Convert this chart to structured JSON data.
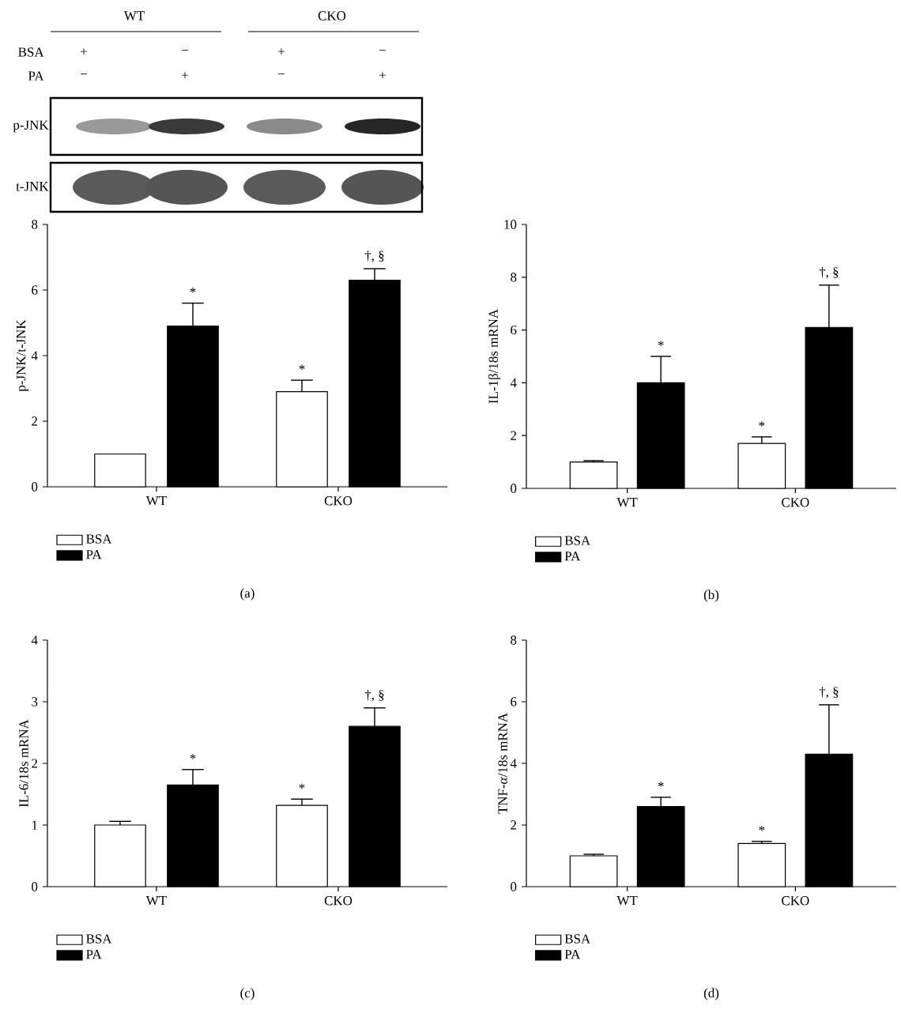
{
  "chart_data": [
    {
      "type": "bar",
      "title": "(a)",
      "ylabel": "p-JNK/t-JNK",
      "categories": [
        "WT",
        "CKO"
      ],
      "ylim": [
        0,
        8
      ],
      "yticks": [
        0,
        2,
        4,
        6,
        8
      ],
      "legend": "bottom",
      "series": [
        {
          "name": "BSA",
          "color": "#ffffff",
          "values": [
            1.0,
            2.9
          ],
          "errors": [
            null,
            [
              2.9,
              3.25
            ]
          ]
        },
        {
          "name": "PA",
          "color": "#000000",
          "values": [
            4.9,
            6.3
          ],
          "errors": [
            [
              4.9,
              5.6
            ],
            [
              6.3,
              6.65
            ]
          ]
        }
      ],
      "annotations": [
        "WT",
        "CKO",
        "BSA",
        "PA",
        "+",
        "−",
        "+",
        "−",
        "−",
        "+",
        "−",
        "+",
        "p-JNK",
        "t-JNK",
        "*",
        "*",
        "†, §"
      ]
    },
    {
      "type": "bar",
      "title": "(b)",
      "ylabel": "IL-1β/18s mRNA",
      "categories": [
        "WT",
        "CKO"
      ],
      "ylim": [
        0,
        10
      ],
      "yticks": [
        0,
        2,
        4,
        6,
        8,
        10
      ],
      "legend": "bottom",
      "series": [
        {
          "name": "BSA",
          "color": "#ffffff",
          "values": [
            1.0,
            1.7
          ],
          "errors": [
            [
              1.0,
              1.05
            ],
            [
              1.7,
              1.95
            ]
          ]
        },
        {
          "name": "PA",
          "color": "#000000",
          "values": [
            4.0,
            6.1
          ],
          "errors": [
            [
              4.0,
              5.0
            ],
            [
              6.1,
              7.7
            ]
          ]
        }
      ],
      "annotations": [
        "*",
        "*",
        "†, §"
      ]
    },
    {
      "type": "bar",
      "title": "(c)",
      "ylabel": "IL-6/18s mRNA",
      "categories": [
        "WT",
        "CKO"
      ],
      "ylim": [
        0,
        4
      ],
      "yticks": [
        0,
        1,
        2,
        3,
        4
      ],
      "legend": "bottom",
      "series": [
        {
          "name": "BSA",
          "color": "#ffffff",
          "values": [
            1.0,
            1.32
          ],
          "errors": [
            [
              1.0,
              1.06
            ],
            [
              1.32,
              1.42
            ]
          ]
        },
        {
          "name": "PA",
          "color": "#000000",
          "values": [
            1.65,
            2.6
          ],
          "errors": [
            [
              1.65,
              1.9
            ],
            [
              2.6,
              2.9
            ]
          ]
        }
      ],
      "annotations": [
        "*",
        "*",
        "†, §"
      ]
    },
    {
      "type": "bar",
      "title": "(d)",
      "ylabel": "TNF-*α*/18s mRNA",
      "categories": [
        "WT",
        "CKO"
      ],
      "ylim": [
        0,
        8
      ],
      "yticks": [
        0,
        2,
        4,
        6,
        8
      ],
      "legend": "bottom",
      "series": [
        {
          "name": "BSA",
          "color": "#ffffff",
          "values": [
            1.0,
            1.4
          ],
          "errors": [
            [
              1.0,
              1.05
            ],
            [
              1.4,
              1.47
            ]
          ]
        },
        {
          "name": "PA",
          "color": "#000000",
          "values": [
            2.6,
            4.3
          ],
          "errors": [
            [
              2.6,
              2.9
            ],
            [
              4.3,
              5.9
            ]
          ]
        }
      ],
      "annotations": [
        "*",
        "*",
        "†, §"
      ]
    }
  ]
}
